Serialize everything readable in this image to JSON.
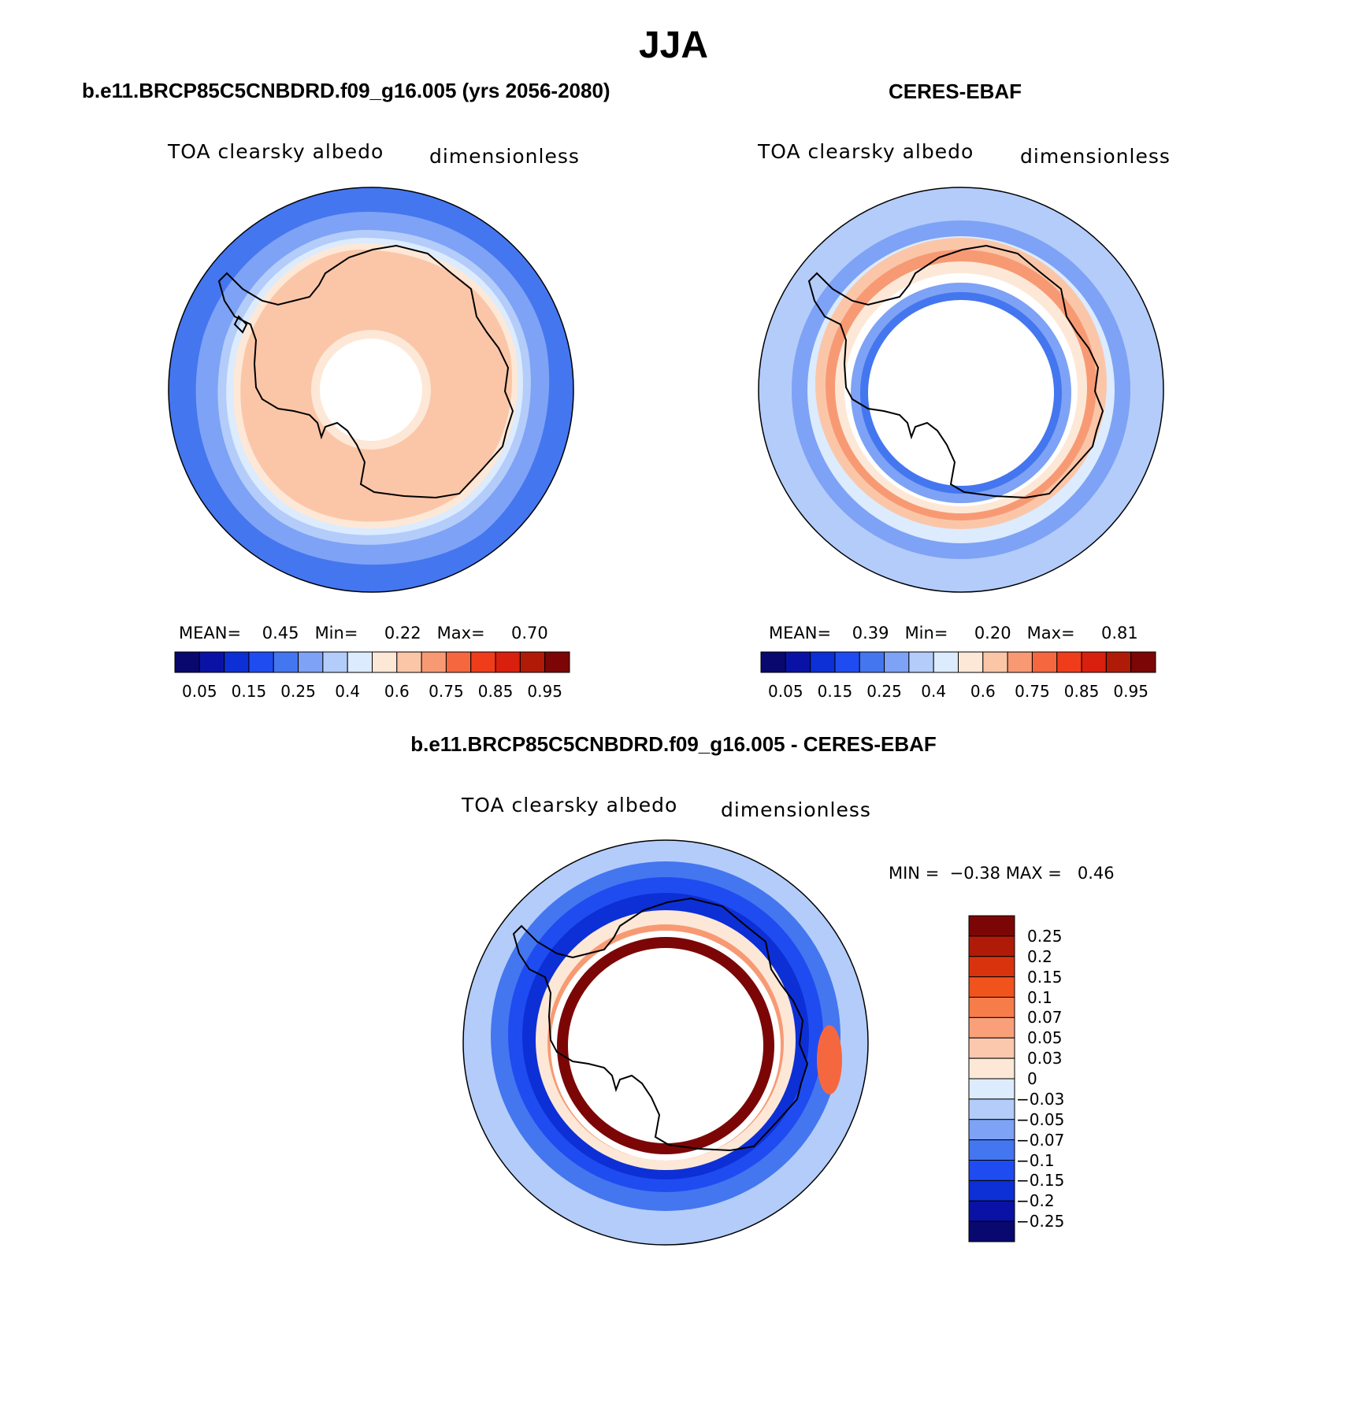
{
  "figure": {
    "title": "JJA"
  },
  "panels": [
    {
      "id": "model",
      "title": "b.e11.BRCP85C5CNBDRD.f09_g16.005 (yrs 2056-2080)",
      "variable_label": "TOA clearsky albedo",
      "units_label": "dimensionless",
      "stats": {
        "mean_label": "MEAN=",
        "mean": "0.45",
        "min_label": "Min=",
        "min": "0.22",
        "max_label": "Max=",
        "max": "0.70"
      },
      "colorbar_ticks": [
        "0.05",
        "0.15",
        "0.25",
        "0.4",
        "0.6",
        "0.75",
        "0.85",
        "0.95"
      ]
    },
    {
      "id": "obs",
      "title": "CERES-EBAF",
      "variable_label": "TOA clearsky albedo",
      "units_label": "dimensionless",
      "stats": {
        "mean_label": "MEAN=",
        "mean": "0.39",
        "min_label": "Min=",
        "min": "0.20",
        "max_label": "Max=",
        "max": "0.81"
      },
      "colorbar_ticks": [
        "0.05",
        "0.15",
        "0.25",
        "0.4",
        "0.6",
        "0.75",
        "0.85",
        "0.95"
      ]
    },
    {
      "id": "diff",
      "title": "b.e11.BRCP85C5CNBDRD.f09_g16.005 - CERES-EBAF",
      "variable_label": "TOA clearsky albedo",
      "units_label": "dimensionless",
      "stats": {
        "min_label": "MIN =",
        "min": "−0.38",
        "max_label": "MAX =",
        "max": "0.46"
      },
      "colorbar_ticks": [
        "0.25",
        "0.2",
        "0.15",
        "0.1",
        "0.07",
        "0.05",
        "0.03",
        "0",
        "−0.03",
        "−0.05",
        "−0.07",
        "−0.1",
        "−0.15",
        "−0.2",
        "−0.25"
      ]
    }
  ],
  "colors": {
    "abs_scale": [
      "#08086e",
      "#0a12a6",
      "#0d2fd6",
      "#1f4cf0",
      "#4476ef",
      "#7ea2f5",
      "#b3ccfa",
      "#dcebfd",
      "#fde8d7",
      "#fbc6a8",
      "#f79a74",
      "#f5683f",
      "#ef3d1c",
      "#d91f0d",
      "#b01b08",
      "#7c0606"
    ],
    "diff_scale": [
      "#7c0606",
      "#b01b08",
      "#d9330d",
      "#f1531d",
      "#f67c4a",
      "#f9a07a",
      "#fbc8ad",
      "#fde8d7",
      "#dcebfd",
      "#b3ccfa",
      "#7ea2f5",
      "#4476ef",
      "#1f4cf0",
      "#0d2fd6",
      "#0a12a6",
      "#08086e"
    ]
  }
}
